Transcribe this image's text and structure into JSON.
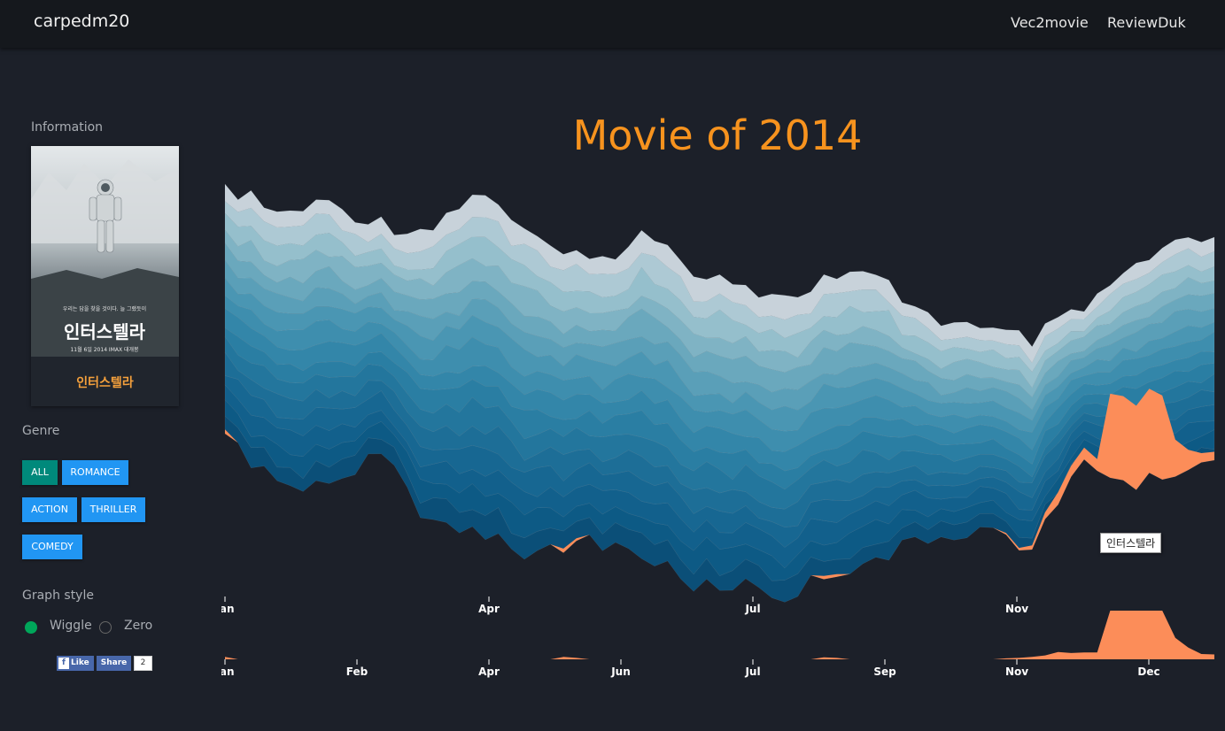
{
  "navbar": {
    "brand": "carpedm20",
    "links": [
      "Vec2movie",
      "ReviewDuk"
    ]
  },
  "sidebar": {
    "information_title": "Information",
    "selected_movie": {
      "title": "인터스텔라",
      "poster_tagline": "우리는 답을 찾을 것이다. 늘 그랬듯이",
      "poster_title": "인터스텔라",
      "poster_footer": "11월 6일 2014 IMAX 대개봉"
    },
    "genre_title": "Genre",
    "genres": [
      {
        "label": "ALL",
        "active": true
      },
      {
        "label": "ROMANCE",
        "active": false
      },
      {
        "label": "ACTION",
        "active": false
      },
      {
        "label": "THRILLER",
        "active": false
      },
      {
        "label": "COMEDY",
        "active": false
      }
    ],
    "graph_style_title": "Graph style",
    "graph_styles": [
      {
        "label": "Wiggle",
        "selected": true
      },
      {
        "label": "Zero",
        "selected": false
      }
    ],
    "social": {
      "like": "Like",
      "share": "Share",
      "share_count": "2"
    }
  },
  "main": {
    "title": "Movie of 2014",
    "tooltip": "인터스텔라",
    "colors": {
      "highlight": "#fc8d59",
      "title": "#f7931e",
      "stream_dark": "#0d5a85",
      "stream_light": "#c7cbd4"
    }
  },
  "chart_data": [
    {
      "type": "area",
      "subtype": "streamgraph",
      "layout": "wiggle",
      "title": "Movie of 2014",
      "x_ticks": [
        "Jan",
        "Apr",
        "Jul",
        "Nov"
      ],
      "highlight_series": "인터스텔라"
    },
    {
      "type": "area",
      "subtype": "brush-context",
      "x_ticks": [
        "Jan",
        "Feb",
        "Apr",
        "Jun",
        "Jul",
        "Sep",
        "Nov",
        "Dec"
      ],
      "series": [
        {
          "name": "인터스텔라",
          "values": [
            0.05,
            0,
            0,
            0,
            0,
            0,
            0,
            0,
            0,
            0,
            0,
            0,
            0,
            0,
            0,
            0,
            0,
            0,
            0,
            0,
            0,
            0,
            0,
            0,
            0,
            0,
            0.05,
            0.03,
            0,
            0,
            0,
            0,
            0,
            0,
            0,
            0,
            0,
            0,
            0,
            0,
            0,
            0,
            0,
            0,
            0,
            0,
            0.04,
            0.03,
            0,
            0,
            0,
            0,
            0,
            0,
            0,
            0,
            0,
            0,
            0,
            0,
            0.02,
            0.03,
            0.05,
            0.08,
            0.15,
            0.13,
            0.14,
            0.14,
            1.0,
            1.0,
            1.0,
            1.0,
            1.0,
            0.44,
            0.24,
            0.11,
            0.1
          ]
        }
      ]
    }
  ]
}
